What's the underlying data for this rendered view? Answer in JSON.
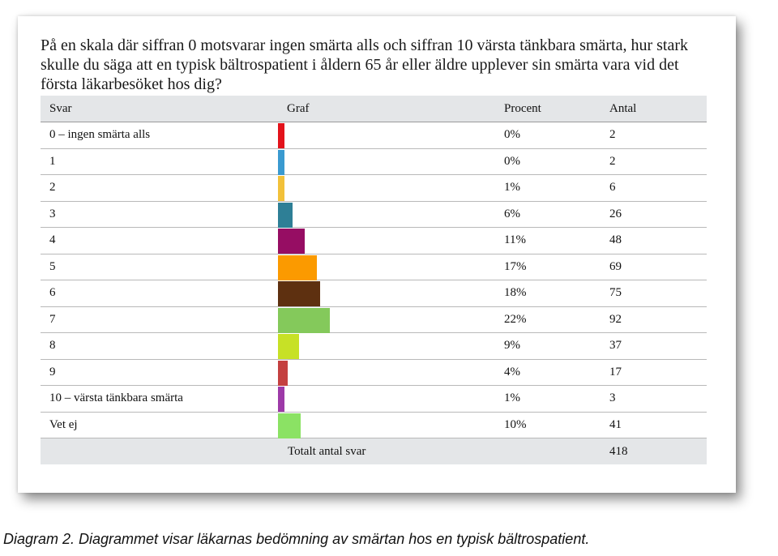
{
  "question": "På en skala där siffran 0 motsvarar ingen smärta alls och siffran 10 värsta tänkbara smärta, hur stark skulle du säga att en typisk bältrospatient i åldern 65 år eller äldre upplever sin smärta vara vid det första läkarbesöket hos dig?",
  "caption": "Diagram 2. Diagrammet visar läkarnas bedömning av smärtan hos en typisk bältrospatient.",
  "chart_data": {
    "type": "table",
    "columns": [
      "Svar",
      "Graf",
      "Procent",
      "Antal"
    ],
    "rows": [
      {
        "label": "0 – ingen smärta alls",
        "percent_text": "0%",
        "count": "2",
        "bar_fraction": 0.005,
        "color": "#e3131b"
      },
      {
        "label": "1",
        "percent_text": "0%",
        "count": "2",
        "bar_fraction": 0.005,
        "color": "#3a9ad0"
      },
      {
        "label": "2",
        "percent_text": "1%",
        "count": "6",
        "bar_fraction": 0.014,
        "color": "#f2c13a"
      },
      {
        "label": "3",
        "percent_text": "6%",
        "count": "26",
        "bar_fraction": 0.062,
        "color": "#2e7f96"
      },
      {
        "label": "4",
        "percent_text": "11%",
        "count": "48",
        "bar_fraction": 0.115,
        "color": "#960d63"
      },
      {
        "label": "5",
        "percent_text": "17%",
        "count": "69",
        "bar_fraction": 0.165,
        "color": "#fb9a00"
      },
      {
        "label": "6",
        "percent_text": "18%",
        "count": "75",
        "bar_fraction": 0.179,
        "color": "#5e3010"
      },
      {
        "label": "7",
        "percent_text": "22%",
        "count": "92",
        "bar_fraction": 0.22,
        "color": "#84c95b"
      },
      {
        "label": "8",
        "percent_text": "9%",
        "count": "37",
        "bar_fraction": 0.089,
        "color": "#c7e126"
      },
      {
        "label": "9",
        "percent_text": "4%",
        "count": "17",
        "bar_fraction": 0.041,
        "color": "#c44040"
      },
      {
        "label": "10 – värsta tänkbara smärta",
        "percent_text": "1%",
        "count": "3",
        "bar_fraction": 0.007,
        "color": "#9d3aa8"
      },
      {
        "label": "Vet ej",
        "percent_text": "10%",
        "count": "41",
        "bar_fraction": 0.098,
        "color": "#8be264"
      }
    ],
    "total_label": "Totalt antal svar",
    "total_count": "418"
  }
}
